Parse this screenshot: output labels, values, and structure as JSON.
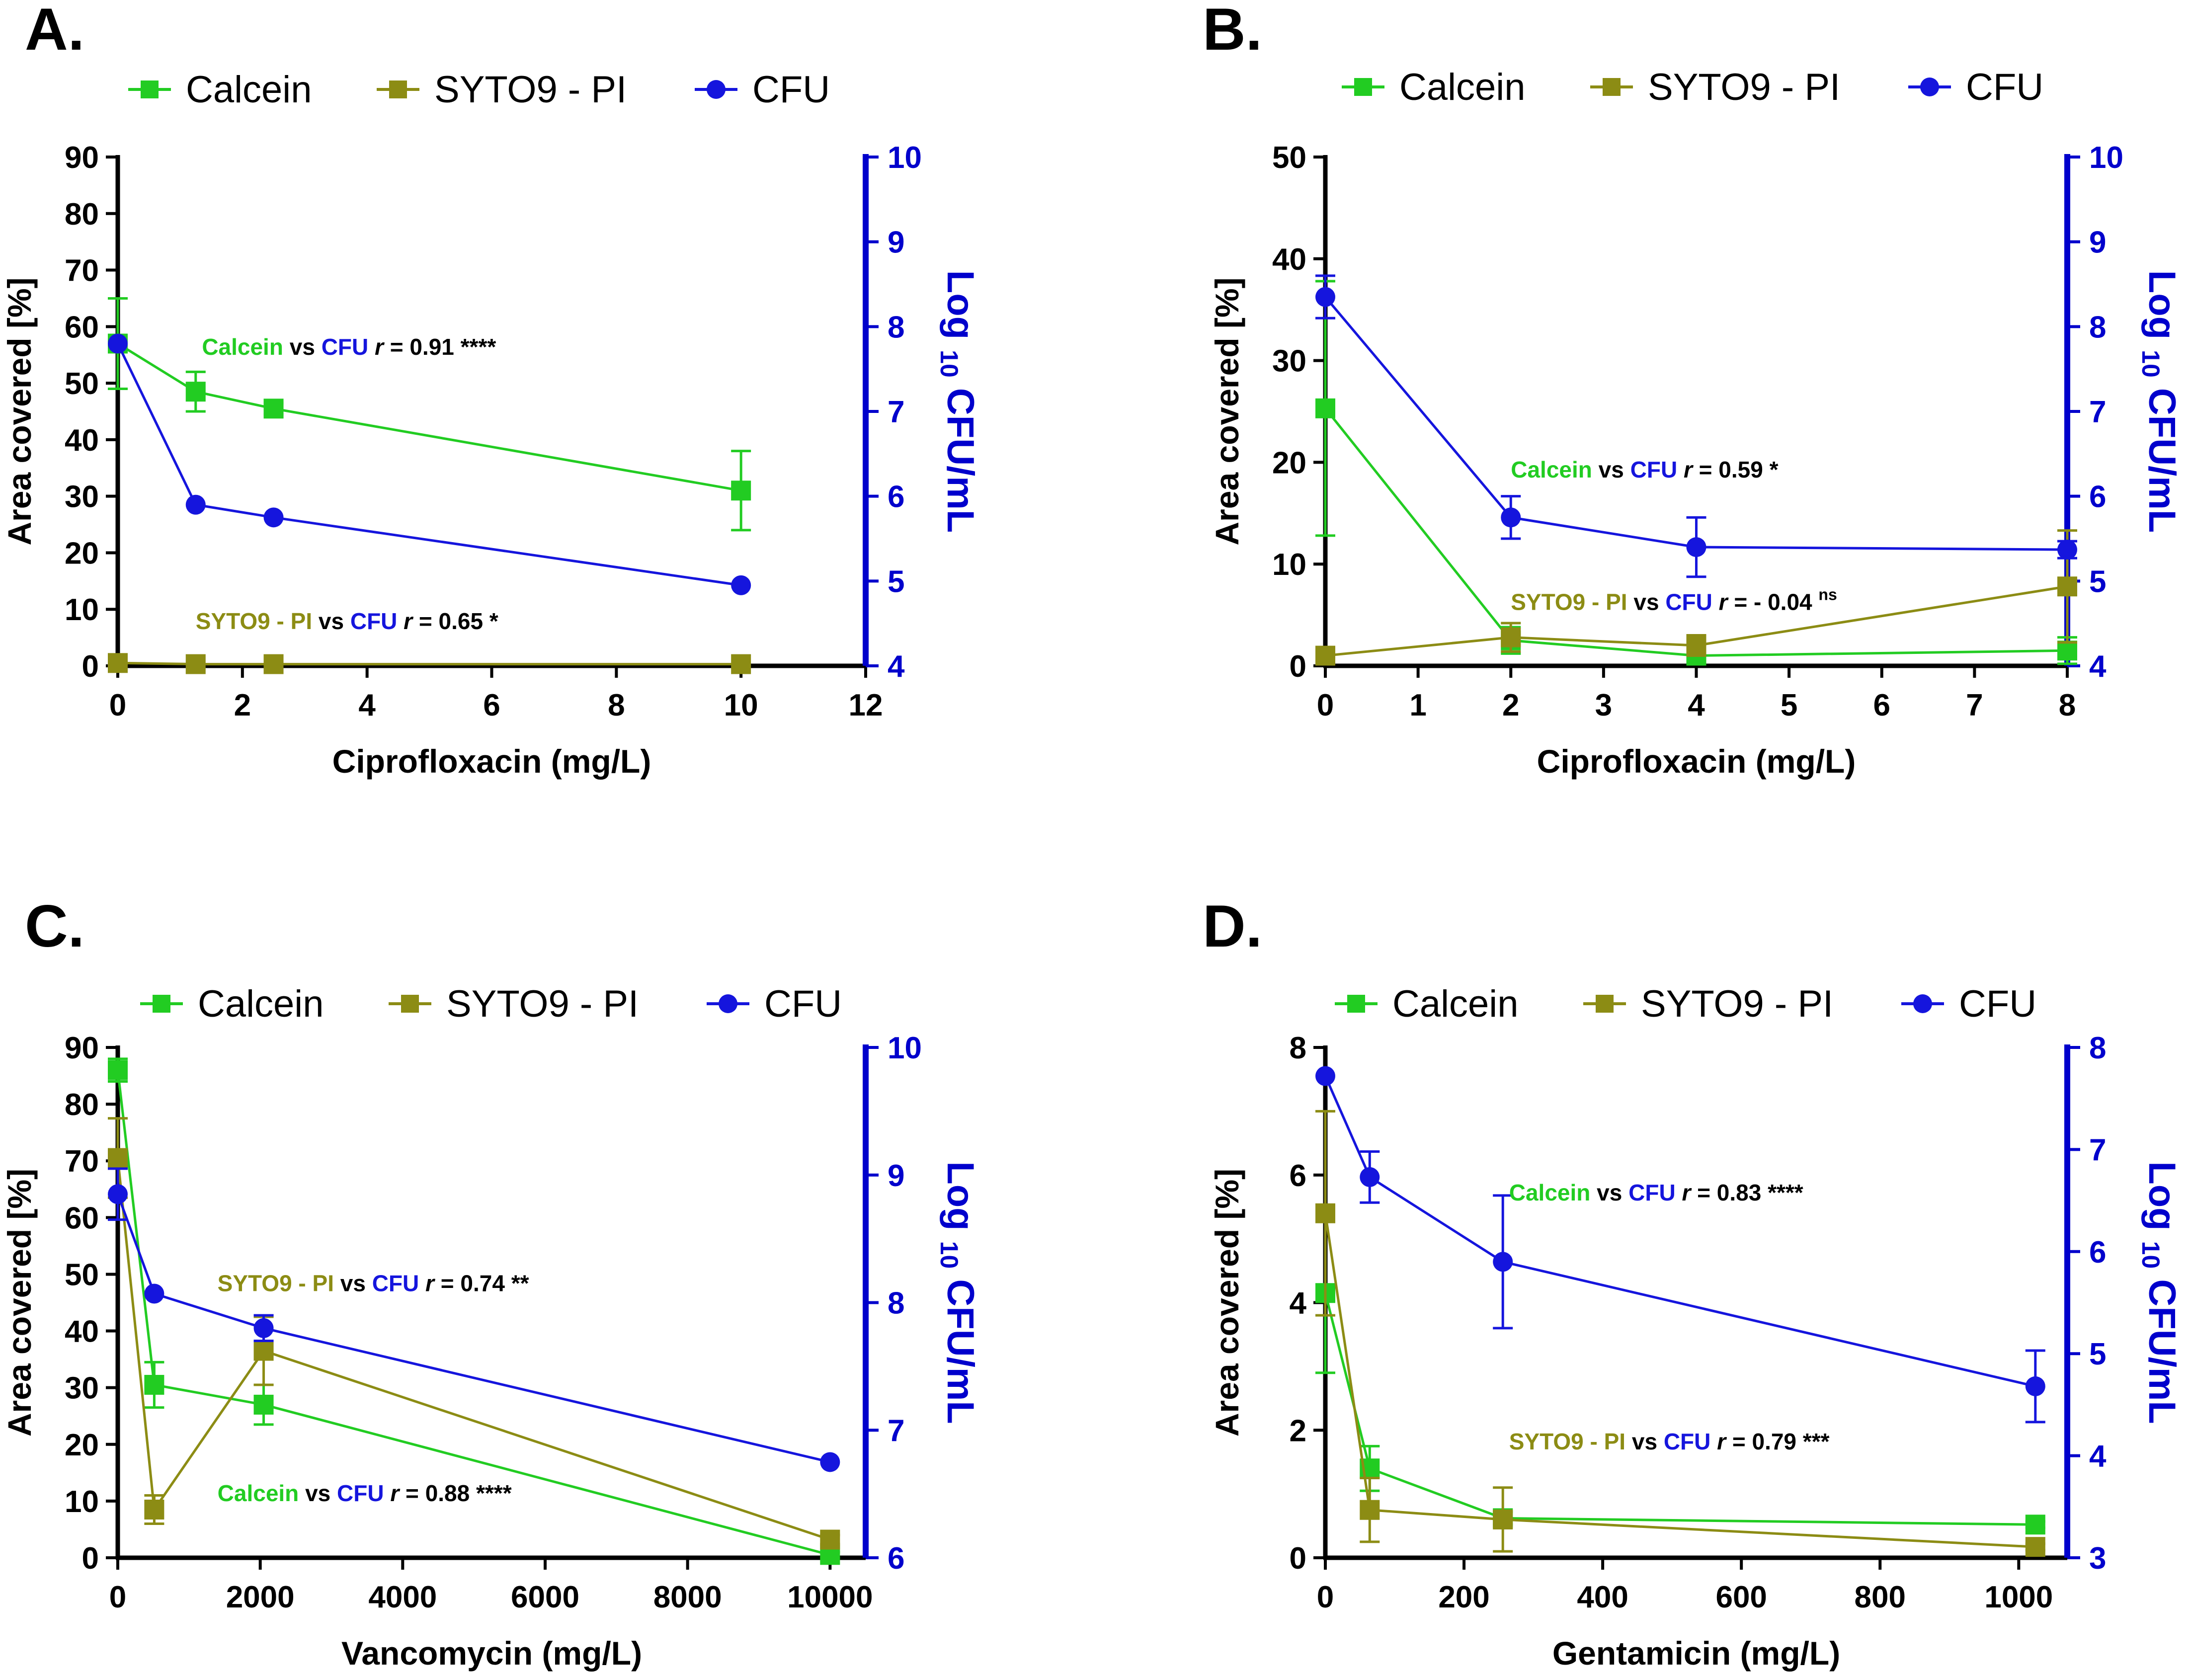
{
  "colors": {
    "calcein": "#22cc22",
    "syto": "#8c8c14",
    "cfu": "#1515dd",
    "axis_blue": "#0000cc"
  },
  "legend": [
    {
      "label": "Calcein",
      "marker": "square",
      "color_key": "calcein"
    },
    {
      "label": "SYTO9 - PI",
      "marker": "square",
      "color_key": "syto"
    },
    {
      "label": "CFU",
      "marker": "circle",
      "color_key": "cfu"
    }
  ],
  "chart_data": [
    {
      "panel": "A.",
      "type": "line",
      "xlabel": "Ciprofloxacin (mg/L)",
      "ylabel": "Area covered  [%]",
      "y2label_parts": [
        "Log ",
        "10",
        " CFU/mL"
      ],
      "xlim": [
        0,
        12
      ],
      "xticks": [
        0,
        2,
        4,
        6,
        8,
        10,
        12
      ],
      "xtick_labels": [
        "0",
        "2",
        "4",
        "6",
        "8",
        "10",
        "12"
      ],
      "ylim": [
        0,
        90
      ],
      "yticks": [
        0,
        10,
        20,
        30,
        40,
        50,
        60,
        70,
        80,
        90
      ],
      "y2lim": [
        4,
        10
      ],
      "y2ticks": [
        4,
        5,
        6,
        7,
        8,
        9,
        10
      ],
      "zero_line": true,
      "series": [
        {
          "name": "Calcein",
          "axis": "left",
          "marker": "square",
          "color_key": "calcein",
          "x": [
            0,
            1.25,
            2.5,
            10
          ],
          "y": [
            57,
            48.5,
            45.5,
            31
          ],
          "err": [
            8,
            3.5,
            1,
            7
          ]
        },
        {
          "name": "SYTO9 - PI",
          "axis": "left",
          "marker": "square",
          "color_key": "syto",
          "x": [
            0,
            1.25,
            2.5,
            10
          ],
          "y": [
            0.5,
            0.3,
            0.3,
            0.3
          ],
          "err": [
            0,
            0,
            0,
            0
          ]
        },
        {
          "name": "CFU",
          "axis": "right",
          "marker": "circle",
          "color_key": "cfu",
          "x": [
            0,
            1.25,
            2.5,
            10
          ],
          "y": [
            7.8,
            5.9,
            5.75,
            4.95
          ],
          "err": [
            0,
            0,
            0,
            0
          ]
        }
      ],
      "annotations": [
        {
          "xd": 1.35,
          "yd": 55,
          "parts": [
            {
              "t": "Calcein",
              "c": "calcein"
            },
            {
              "t": " vs ",
              "c": "black"
            },
            {
              "t": "CFU",
              "c": "cfu"
            },
            {
              "t": " r",
              "c": "black",
              "italic": true
            },
            {
              "t": " = 0.91 ****",
              "c": "black"
            }
          ]
        },
        {
          "xd": 1.25,
          "yd": 6.5,
          "parts": [
            {
              "t": "SYTO9 - PI",
              "c": "syto"
            },
            {
              "t": " vs ",
              "c": "black"
            },
            {
              "t": "CFU",
              "c": "cfu"
            },
            {
              "t": " r",
              "c": "black",
              "italic": true
            },
            {
              "t": " = 0.65 *",
              "c": "black"
            }
          ]
        }
      ]
    },
    {
      "panel": "B.",
      "type": "line",
      "xlabel": "Ciprofloxacin (mg/L)",
      "ylabel": "Area covered  [%]",
      "y2label_parts": [
        "Log ",
        "10",
        " CFU/mL"
      ],
      "xlim": [
        0,
        8
      ],
      "xticks": [
        0,
        1,
        2,
        3,
        4,
        5,
        6,
        7,
        8
      ],
      "xtick_labels": [
        "0",
        "1",
        "2",
        "3",
        "4",
        "5",
        "6",
        "7",
        "8"
      ],
      "ylim": [
        0,
        50
      ],
      "yticks": [
        0,
        10,
        20,
        30,
        40,
        50
      ],
      "y2lim": [
        4,
        10
      ],
      "y2ticks": [
        4,
        5,
        6,
        7,
        8,
        9,
        10
      ],
      "zero_line": false,
      "series": [
        {
          "name": "Calcein",
          "axis": "left",
          "marker": "square",
          "color_key": "calcein",
          "x": [
            0,
            2,
            4,
            8
          ],
          "y": [
            25.3,
            2.5,
            1.0,
            1.5
          ],
          "err": [
            12.5,
            1.3,
            0.5,
            1.3
          ]
        },
        {
          "name": "SYTO9 - PI",
          "axis": "left",
          "marker": "square",
          "color_key": "syto",
          "x": [
            0,
            2,
            4,
            8
          ],
          "y": [
            1.0,
            2.8,
            2.0,
            7.8
          ],
          "err": [
            0,
            1.4,
            1.0,
            5.5
          ]
        },
        {
          "name": "CFU",
          "axis": "right",
          "marker": "circle",
          "color_key": "cfu",
          "x": [
            0,
            2,
            4,
            8
          ],
          "y": [
            8.35,
            5.75,
            5.4,
            5.37
          ],
          "err": [
            0.25,
            0.25,
            0.35,
            0.1
          ]
        }
      ],
      "annotations": [
        {
          "xd": 2.0,
          "yd": 18.5,
          "parts": [
            {
              "t": "Calcein",
              "c": "calcein"
            },
            {
              "t": " vs ",
              "c": "black"
            },
            {
              "t": "CFU",
              "c": "cfu"
            },
            {
              "t": " r",
              "c": "black",
              "italic": true
            },
            {
              "t": " = 0.59 *",
              "c": "black"
            }
          ]
        },
        {
          "xd": 2.0,
          "yd": 5.5,
          "parts": [
            {
              "t": "SYTO9 - PI",
              "c": "syto"
            },
            {
              "t": " vs ",
              "c": "black"
            },
            {
              "t": "CFU",
              "c": "cfu"
            },
            {
              "t": " r",
              "c": "black",
              "italic": true
            },
            {
              "t": " = - 0.04 ",
              "c": "black"
            },
            {
              "t": "ns",
              "c": "black",
              "sup": true
            }
          ]
        }
      ]
    },
    {
      "panel": "C.",
      "type": "line",
      "xlabel": "Vancomycin (mg/L)",
      "ylabel": "Area covered [%]",
      "y2label_parts": [
        "Log ",
        "10",
        " CFU/mL"
      ],
      "xlim": [
        0,
        10500
      ],
      "xticks": [
        0,
        2000,
        4000,
        6000,
        8000,
        10000
      ],
      "xtick_labels": [
        "0",
        "2000",
        "4000",
        "6000",
        "8000",
        "10000"
      ],
      "ylim": [
        0,
        90
      ],
      "yticks": [
        0,
        10,
        20,
        30,
        40,
        50,
        60,
        70,
        80,
        90
      ],
      "y2lim": [
        6,
        10
      ],
      "y2ticks": [
        6,
        7,
        8,
        9,
        10
      ],
      "zero_line": false,
      "series": [
        {
          "name": "Calcein",
          "axis": "left",
          "marker": "square",
          "color_key": "calcein",
          "x": [
            0,
            512,
            2048,
            10000
          ],
          "y": [
            86,
            30.5,
            27,
            0.5
          ],
          "err": [
            2,
            4,
            3.5,
            0.5
          ]
        },
        {
          "name": "SYTO9 - PI",
          "axis": "left",
          "marker": "square",
          "color_key": "syto",
          "x": [
            0,
            512,
            2048,
            10000
          ],
          "y": [
            70.5,
            8.5,
            36.5,
            3.2
          ],
          "err": [
            7,
            2.5,
            6,
            0.8
          ]
        },
        {
          "name": "CFU",
          "axis": "right",
          "marker": "circle",
          "color_key": "cfu",
          "x": [
            0,
            512,
            2048,
            10000
          ],
          "y": [
            8.85,
            8.07,
            7.8,
            6.75
          ],
          "err": [
            0.2,
            0,
            0.1,
            0
          ]
        }
      ],
      "annotations": [
        {
          "xd": 1400,
          "yd": 47,
          "parts": [
            {
              "t": "SYTO9 - PI",
              "c": "syto"
            },
            {
              "t": " vs ",
              "c": "black"
            },
            {
              "t": "CFU",
              "c": "cfu"
            },
            {
              "t": " r",
              "c": "black",
              "italic": true
            },
            {
              "t": "  = 0.74 **",
              "c": "black"
            }
          ]
        },
        {
          "xd": 1400,
          "yd": 10,
          "parts": [
            {
              "t": "Calcein",
              "c": "calcein"
            },
            {
              "t": " vs ",
              "c": "black"
            },
            {
              "t": "CFU",
              "c": "cfu"
            },
            {
              "t": " r",
              "c": "black",
              "italic": true
            },
            {
              "t": "  = 0.88 ****",
              "c": "black"
            }
          ]
        }
      ]
    },
    {
      "panel": "D.",
      "type": "line",
      "xlabel": "Gentamicin (mg/L)",
      "ylabel": "Area covered [%]",
      "y2label_parts": [
        "Log ",
        "10",
        " CFU/mL"
      ],
      "xlim": [
        0,
        1070
      ],
      "xticks": [
        0,
        200,
        400,
        600,
        800,
        1000
      ],
      "xtick_labels": [
        "0",
        "200",
        "400",
        "600",
        "800",
        "1000"
      ],
      "ylim": [
        0,
        8
      ],
      "yticks": [
        0,
        2,
        4,
        6,
        8
      ],
      "y2lim": [
        3,
        8
      ],
      "y2ticks": [
        3,
        4,
        5,
        6,
        7,
        8
      ],
      "zero_line": false,
      "series": [
        {
          "name": "Calcein",
          "axis": "left",
          "marker": "square",
          "color_key": "calcein",
          "x": [
            0,
            64,
            256,
            1024
          ],
          "y": [
            4.15,
            1.4,
            0.62,
            0.52
          ],
          "err": [
            1.25,
            0.35,
            0.1,
            0.05
          ]
        },
        {
          "name": "SYTO9 - PI",
          "axis": "left",
          "marker": "square",
          "color_key": "syto",
          "x": [
            0,
            64,
            256,
            1024
          ],
          "y": [
            5.4,
            0.75,
            0.6,
            0.17
          ],
          "err": [
            1.6,
            0.5,
            0.5,
            0.05
          ]
        },
        {
          "name": "CFU",
          "axis": "right",
          "marker": "circle",
          "color_key": "cfu",
          "x": [
            0,
            64,
            256,
            1024
          ],
          "y": [
            7.72,
            6.73,
            5.9,
            4.68
          ],
          "err": [
            0,
            0.25,
            0.65,
            0.35
          ]
        }
      ],
      "annotations": [
        {
          "xd": 265,
          "yd": 5.6,
          "parts": [
            {
              "t": "Calcein",
              "c": "calcein"
            },
            {
              "t": " vs ",
              "c": "black"
            },
            {
              "t": "CFU",
              "c": "cfu"
            },
            {
              "t": " r",
              "c": "black",
              "italic": true
            },
            {
              "t": " = 0.83 ****",
              "c": "black"
            }
          ]
        },
        {
          "xd": 265,
          "yd": 1.7,
          "parts": [
            {
              "t": "SYTO9 - PI",
              "c": "syto"
            },
            {
              "t": " vs ",
              "c": "black"
            },
            {
              "t": "CFU",
              "c": "cfu"
            },
            {
              "t": " r",
              "c": "black",
              "italic": true
            },
            {
              "t": " =  0.79 ***",
              "c": "black"
            }
          ]
        }
      ]
    }
  ]
}
